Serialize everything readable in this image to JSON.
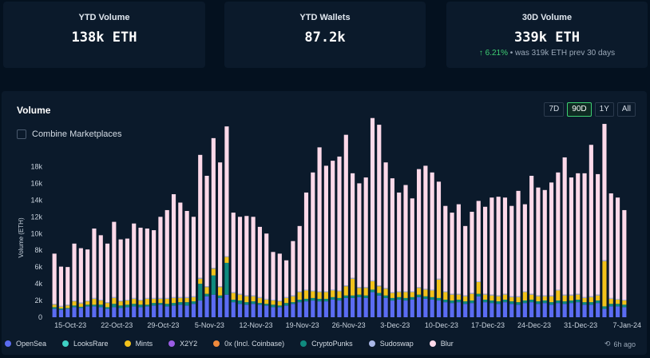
{
  "stats": [
    {
      "title": "YTD Volume",
      "value": "138k ETH"
    },
    {
      "title": "YTD Wallets",
      "value": "87.2k"
    },
    {
      "title": "30D Volume",
      "value": "339k ETH",
      "change_pct": "6.21%",
      "change_text": "• was 319k ETH prev 30 days"
    }
  ],
  "volume_panel": {
    "title": "Volume",
    "ranges": [
      "7D",
      "90D",
      "1Y",
      "All"
    ],
    "active_range": "90D",
    "combine_label": "Combine Marketplaces",
    "updated": "6h ago"
  },
  "legend": [
    {
      "name": "OpenSea",
      "color": "#5b6cf2"
    },
    {
      "name": "LooksRare",
      "color": "#3fd1c5"
    },
    {
      "name": "Mints",
      "color": "#f2c21b"
    },
    {
      "name": "X2Y2",
      "color": "#9b5de5"
    },
    {
      "name": "0x (Incl. Coinbase)",
      "color": "#f08a3c"
    },
    {
      "name": "CryptoPunks",
      "color": "#0f8a7e"
    },
    {
      "name": "Sudoswap",
      "color": "#aab8e8"
    },
    {
      "name": "Blur",
      "color": "#fdd9e9"
    }
  ],
  "chart_data": {
    "type": "bar",
    "stacked": true,
    "ylabel": "Volume (ETH)",
    "yticks": [
      "0",
      "2k",
      "4k",
      "6k",
      "8k",
      "10k",
      "12k",
      "14k",
      "16k",
      "18k"
    ],
    "ylim": [
      0,
      19000
    ],
    "xticks": [
      "15-Oct-23",
      "22-Oct-23",
      "29-Oct-23",
      "5-Nov-23",
      "12-Nov-23",
      "19-Nov-23",
      "26-Nov-23",
      "3-Dec-23",
      "10-Dec-23",
      "17-Dec-23",
      "24-Dec-23",
      "31-Dec-23",
      "7-Jan-24"
    ],
    "series_names": [
      "OpenSea",
      "CryptoPunks",
      "Mints",
      "Sudoswap",
      "Blur"
    ],
    "series_colors": [
      "#5b6cf2",
      "#0f8a7e",
      "#f2c21b",
      "#aab8e8",
      "#fdd9e9"
    ],
    "days": [
      [
        1000,
        200,
        300,
        100,
        6000
      ],
      [
        900,
        150,
        200,
        100,
        4700
      ],
      [
        1000,
        100,
        300,
        100,
        4500
      ],
      [
        1200,
        200,
        500,
        100,
        6800
      ],
      [
        1100,
        150,
        400,
        100,
        6500
      ],
      [
        1300,
        200,
        400,
        100,
        6100
      ],
      [
        1300,
        200,
        700,
        100,
        8300
      ],
      [
        1200,
        300,
        500,
        100,
        7700
      ],
      [
        1000,
        200,
        500,
        100,
        7000
      ],
      [
        1200,
        400,
        700,
        100,
        9000
      ],
      [
        1100,
        300,
        500,
        100,
        7300
      ],
      [
        1200,
        300,
        500,
        100,
        7300
      ],
      [
        1300,
        300,
        600,
        100,
        8900
      ],
      [
        1200,
        300,
        500,
        100,
        8600
      ],
      [
        1300,
        200,
        700,
        100,
        8300
      ],
      [
        1400,
        300,
        500,
        100,
        8100
      ],
      [
        1500,
        200,
        500,
        100,
        9700
      ],
      [
        1300,
        300,
        600,
        100,
        10500
      ],
      [
        1400,
        300,
        600,
        100,
        12300
      ],
      [
        1500,
        300,
        500,
        100,
        11300
      ],
      [
        1400,
        400,
        500,
        100,
        10300
      ],
      [
        1600,
        300,
        500,
        100,
        9500
      ],
      [
        2000,
        2000,
        600,
        100,
        14700
      ],
      [
        2500,
        300,
        800,
        100,
        13200
      ],
      [
        2700,
        2300,
        800,
        100,
        15500
      ],
      [
        2300,
        300,
        1000,
        100,
        14800
      ],
      [
        2700,
        3800,
        700,
        100,
        15500
      ],
      [
        1800,
        300,
        800,
        100,
        9500
      ],
      [
        1600,
        400,
        700,
        100,
        9200
      ],
      [
        1500,
        300,
        700,
        100,
        9500
      ],
      [
        1600,
        300,
        600,
        100,
        9400
      ],
      [
        1500,
        200,
        600,
        100,
        8400
      ],
      [
        1400,
        200,
        500,
        100,
        7800
      ],
      [
        1200,
        300,
        500,
        100,
        5700
      ],
      [
        1200,
        200,
        500,
        100,
        5600
      ],
      [
        1400,
        300,
        600,
        100,
        4400
      ],
      [
        1600,
        200,
        700,
        100,
        6500
      ],
      [
        1800,
        300,
        900,
        100,
        7800
      ],
      [
        1900,
        300,
        1000,
        100,
        11600
      ],
      [
        2000,
        300,
        800,
        100,
        14100
      ],
      [
        1900,
        300,
        800,
        100,
        17200
      ],
      [
        1900,
        300,
        800,
        100,
        15000
      ],
      [
        2100,
        300,
        800,
        100,
        15400
      ],
      [
        2000,
        300,
        800,
        100,
        16000
      ],
      [
        2300,
        300,
        1100,
        100,
        18000
      ],
      [
        2300,
        300,
        2000,
        100,
        12500
      ],
      [
        2400,
        300,
        800,
        100,
        12400
      ],
      [
        2300,
        300,
        900,
        100,
        13100
      ],
      [
        3000,
        300,
        1000,
        100,
        19400
      ],
      [
        2600,
        300,
        800,
        100,
        19200
      ],
      [
        2300,
        300,
        800,
        100,
        15000
      ],
      [
        2000,
        300,
        600,
        100,
        13600
      ],
      [
        2100,
        300,
        600,
        100,
        11800
      ],
      [
        2000,
        300,
        700,
        100,
        12700
      ],
      [
        2100,
        300,
        600,
        100,
        11100
      ],
      [
        2400,
        300,
        800,
        100,
        14100
      ],
      [
        2200,
        300,
        800,
        100,
        14700
      ],
      [
        2100,
        300,
        800,
        100,
        14000
      ],
      [
        2000,
        300,
        2200,
        100,
        11600
      ],
      [
        1800,
        300,
        900,
        100,
        10200
      ],
      [
        1700,
        300,
        700,
        100,
        9700
      ],
      [
        1800,
        300,
        600,
        100,
        10700
      ],
      [
        1600,
        300,
        600,
        100,
        8300
      ],
      [
        1700,
        300,
        800,
        100,
        9700
      ],
      [
        2500,
        300,
        1400,
        100,
        9600
      ],
      [
        1800,
        300,
        600,
        100,
        10400
      ],
      [
        1700,
        300,
        600,
        100,
        11600
      ],
      [
        1600,
        300,
        600,
        100,
        11800
      ],
      [
        1800,
        300,
        600,
        100,
        11500
      ],
      [
        1600,
        300,
        500,
        100,
        10800
      ],
      [
        1500,
        300,
        600,
        100,
        12600
      ],
      [
        1700,
        300,
        1000,
        100,
        10400
      ],
      [
        1800,
        300,
        600,
        100,
        14100
      ],
      [
        1600,
        300,
        600,
        100,
        12900
      ],
      [
        1700,
        300,
        500,
        100,
        12600
      ],
      [
        1500,
        300,
        700,
        100,
        13500
      ],
      [
        1700,
        300,
        1200,
        100,
        14000
      ],
      [
        1600,
        300,
        700,
        100,
        16400
      ],
      [
        1700,
        300,
        600,
        100,
        14000
      ],
      [
        1800,
        300,
        600,
        100,
        14400
      ],
      [
        1500,
        300,
        500,
        100,
        14800
      ],
      [
        1500,
        300,
        600,
        100,
        18100
      ],
      [
        1700,
        300,
        600,
        100,
        14400
      ],
      [
        1000,
        300,
        5400,
        100,
        16300
      ],
      [
        1300,
        300,
        600,
        100,
        12500
      ],
      [
        1300,
        300,
        500,
        100,
        12100
      ],
      [
        1200,
        300,
        500,
        100,
        10700
      ]
    ]
  }
}
